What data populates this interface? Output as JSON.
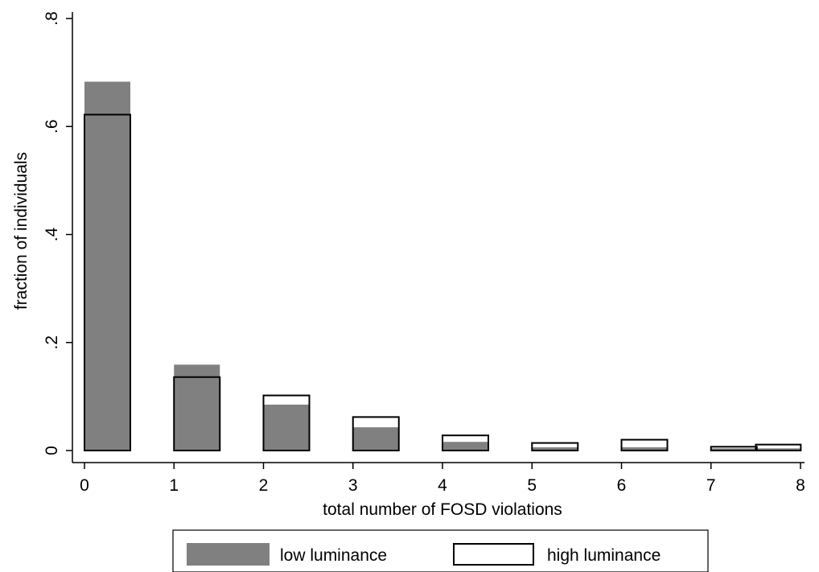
{
  "chart_data": {
    "type": "bar",
    "xlabel": "total number of FOSD violations",
    "ylabel": "fraction of individuals",
    "xlim": [
      0,
      8
    ],
    "ylim": [
      0,
      0.8
    ],
    "x_ticks": [
      "0",
      "1",
      "2",
      "3",
      "4",
      "5",
      "6",
      "7",
      "8"
    ],
    "y_ticks": [
      "0",
      ".2",
      ".4",
      ".6",
      ".8"
    ],
    "grid": false,
    "legend_position": "bottom",
    "series": [
      {
        "name": "low luminance",
        "color": "#808080",
        "style": "filled",
        "x": [
          0,
          1,
          2,
          3,
          4,
          5,
          6,
          7,
          7.5
        ],
        "values": [
          0.683,
          0.159,
          0.085,
          0.043,
          0.016,
          0.006,
          0.006,
          0.004,
          0.004
        ]
      },
      {
        "name": "high luminance",
        "color": "#000000",
        "style": "outline",
        "x": [
          0,
          1,
          2,
          3,
          4,
          5,
          6,
          7,
          7.5
        ],
        "values": [
          0.622,
          0.136,
          0.102,
          0.062,
          0.028,
          0.014,
          0.02,
          0.007,
          0.011
        ]
      }
    ]
  }
}
